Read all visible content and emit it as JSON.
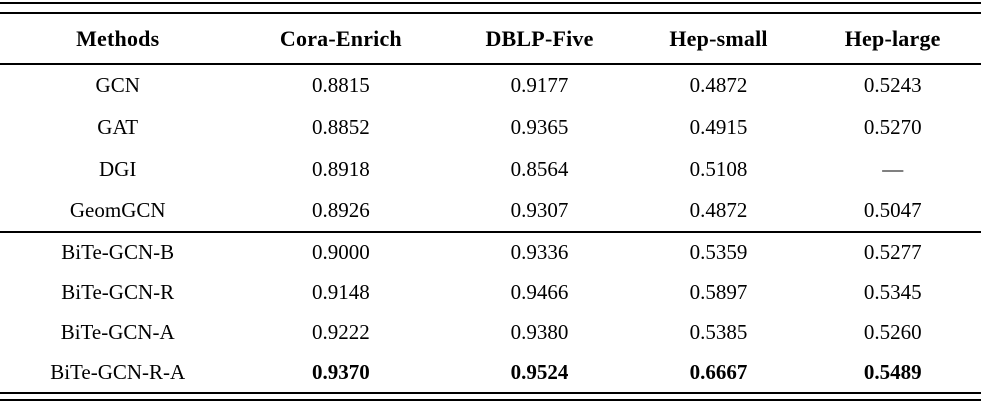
{
  "page": {
    "background_color": "#ffffff",
    "text_color": "#000000",
    "rule_color": "#000000"
  },
  "table": {
    "columns": [
      "Methods",
      "Cora-Enrich",
      "DBLP-Five",
      "Hep-small",
      "Hep-large"
    ],
    "groups": [
      {
        "name": "baselines",
        "rows": [
          {
            "method": "GCN",
            "values": [
              "0.8815",
              "0.9177",
              "0.4872",
              "0.5243"
            ]
          },
          {
            "method": "GAT",
            "values": [
              "0.8852",
              "0.9365",
              "0.4915",
              "0.5270"
            ]
          },
          {
            "method": "DGI",
            "values": [
              "0.8918",
              "0.8564",
              "0.5108",
              "—"
            ]
          },
          {
            "method": "GeomGCN",
            "values": [
              "0.8926",
              "0.9307",
              "0.4872",
              "0.5047"
            ]
          }
        ]
      },
      {
        "name": "bite-gcn-variants",
        "rows": [
          {
            "method": "BiTe-GCN-B",
            "values": [
              "0.9000",
              "0.9336",
              "0.5359",
              "0.5277"
            ]
          },
          {
            "method": "BiTe-GCN-R",
            "values": [
              "0.9148",
              "0.9466",
              "0.5897",
              "0.5345"
            ]
          },
          {
            "method": "BiTe-GCN-A",
            "values": [
              "0.9222",
              "0.9380",
              "0.5385",
              "0.5260"
            ]
          },
          {
            "method": "BiTe-GCN-R-A",
            "values": [
              "0.9370",
              "0.9524",
              "0.6667",
              "0.5489"
            ],
            "bold_values": true
          }
        ]
      }
    ]
  }
}
